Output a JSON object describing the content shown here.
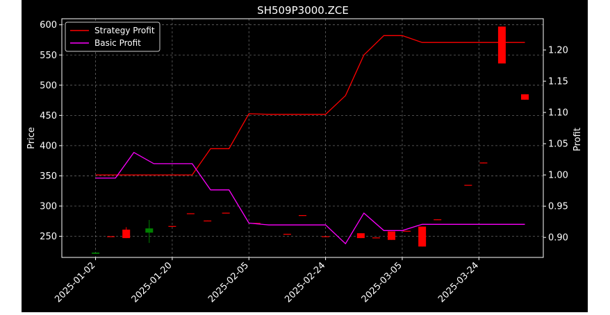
{
  "chart_data": {
    "type": "candlestick_with_lines",
    "title": "SH509P3000.ZCE",
    "ylabel_left": "Price",
    "ylabel_right": "Profit",
    "ylim_left": [
      215,
      610
    ],
    "ylim_right": [
      0.868,
      1.25
    ],
    "yticks_left": [
      250,
      300,
      350,
      400,
      450,
      500,
      550,
      600
    ],
    "yticks_right": [
      "0.90",
      "0.95",
      "1.00",
      "1.05",
      "1.10",
      "1.15",
      "1.20"
    ],
    "xlim_index": [
      -2.2,
      29.2
    ],
    "xtick_labels": [
      {
        "index": 0,
        "label": "2025-01-02"
      },
      {
        "index": 5,
        "label": "2025-01-20"
      },
      {
        "index": 10,
        "label": "2025-02-05"
      },
      {
        "index": 15,
        "label": "2025-02-24"
      },
      {
        "index": 20,
        "label": "2025-03-05"
      },
      {
        "index": 25,
        "label": "2025-03-24"
      }
    ],
    "grid": true,
    "legend_position": "top-left",
    "colors": {
      "up": "#008000",
      "down": "#ff0000",
      "strategy": "#ff0000",
      "basic": "#ff00ff",
      "grid": "#666666"
    },
    "candles": [
      {
        "i": 0,
        "o": 221,
        "c": 223,
        "h": 223,
        "l": 221
      },
      {
        "i": 1,
        "o": 250,
        "c": 249,
        "h": 250,
        "l": 249
      },
      {
        "i": 2,
        "o": 261,
        "c": 247,
        "h": 265,
        "l": 247
      },
      {
        "i": 3,
        "o": 256,
        "c": 263,
        "h": 277,
        "l": 239
      },
      {
        "i": 4,
        "o": 267,
        "c": 266,
        "h": 267,
        "l": 266
      },
      {
        "i": 5,
        "o": 288,
        "c": 287,
        "h": 288,
        "l": 287
      },
      {
        "i": 6,
        "o": 276,
        "c": 275,
        "h": 276,
        "l": 275
      },
      {
        "i": 7,
        "o": 289,
        "c": 288,
        "h": 289,
        "l": 288
      },
      {
        "i": 8,
        "o": 272,
        "c": 271,
        "h": 272,
        "l": 271
      },
      {
        "i": 9,
        "o": 254,
        "c": 253,
        "h": 254,
        "l": 253
      },
      {
        "i": 10,
        "o": 285,
        "c": 284,
        "h": 285,
        "l": 284
      },
      {
        "i": 11,
        "o": 250,
        "c": 249,
        "h": 250,
        "l": 249
      },
      {
        "i": 12,
        "o": 255,
        "c": 247,
        "h": 255,
        "l": 247
      },
      {
        "i": 13,
        "o": 248,
        "c": 247,
        "h": 248,
        "l": 247
      },
      {
        "i": 14,
        "o": 258,
        "c": 244,
        "h": 258,
        "l": 244
      },
      {
        "i": 15,
        "o": 259,
        "c": 258,
        "h": 259,
        "l": 258
      },
      {
        "i": 16,
        "o": 266,
        "c": 233,
        "h": 266,
        "l": 233
      },
      {
        "i": 17,
        "o": 278,
        "c": 277,
        "h": 278,
        "l": 277
      },
      {
        "i": 18,
        "o": 335,
        "c": 334,
        "h": 335,
        "l": 334
      },
      {
        "i": 19,
        "o": 372,
        "c": 371,
        "h": 372,
        "l": 371
      },
      {
        "i": 20,
        "o": 597,
        "c": 536,
        "h": 597,
        "l": 536
      },
      {
        "i": 21,
        "o": 485,
        "c": 476,
        "h": 485,
        "l": 476
      }
    ],
    "candle_x": [
      0,
      1,
      2,
      3.5,
      5,
      6.2,
      7.3,
      8.5,
      10.5,
      12.5,
      13.5,
      15,
      17.3,
      18.3,
      19.3,
      20.3,
      21.3,
      22.3,
      24.3,
      25.3,
      26.5,
      28
    ],
    "series": [
      {
        "name": "Strategy Profit",
        "axis": "right",
        "points": [
          [
            0,
            1.0
          ],
          [
            1.3,
            1.0
          ],
          [
            2.5,
            1.0
          ],
          [
            5.0,
            1.0
          ],
          [
            6.3,
            1.0
          ],
          [
            7.5,
            1.042
          ],
          [
            8.7,
            1.042
          ],
          [
            10.0,
            1.098
          ],
          [
            11.3,
            1.097
          ],
          [
            12.5,
            1.097
          ],
          [
            13.8,
            1.097
          ],
          [
            15.0,
            1.097
          ],
          [
            16.3,
            1.127
          ],
          [
            17.5,
            1.192
          ],
          [
            18.8,
            1.223
          ],
          [
            20.0,
            1.223
          ],
          [
            21.3,
            1.212
          ],
          [
            22.5,
            1.212
          ],
          [
            23.8,
            1.212
          ],
          [
            25.0,
            1.212
          ],
          [
            26.3,
            1.212
          ],
          [
            28.0,
            1.212
          ]
        ]
      },
      {
        "name": "Basic Profit",
        "axis": "right",
        "points": [
          [
            0,
            0.995
          ],
          [
            1.3,
            0.995
          ],
          [
            2.5,
            1.036
          ],
          [
            3.8,
            1.018
          ],
          [
            5.0,
            1.018
          ],
          [
            6.3,
            1.018
          ],
          [
            7.5,
            0.976
          ],
          [
            8.7,
            0.976
          ],
          [
            10.0,
            0.923
          ],
          [
            11.3,
            0.92
          ],
          [
            12.5,
            0.92
          ],
          [
            13.8,
            0.92
          ],
          [
            15.0,
            0.92
          ],
          [
            16.3,
            0.89
          ],
          [
            17.5,
            0.939
          ],
          [
            18.8,
            0.911
          ],
          [
            20.0,
            0.911
          ],
          [
            21.3,
            0.921
          ],
          [
            22.5,
            0.921
          ],
          [
            23.8,
            0.921
          ],
          [
            25.0,
            0.921
          ],
          [
            28.0,
            0.921
          ]
        ]
      }
    ]
  }
}
